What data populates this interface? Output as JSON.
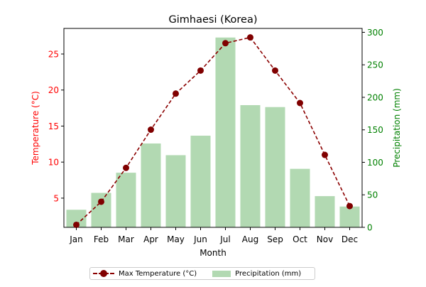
{
  "chart_data": {
    "type": "bar+line",
    "title": "Gimhaesi (Korea)",
    "xlabel": "Month",
    "categories": [
      "Jan",
      "Feb",
      "Mar",
      "Apr",
      "May",
      "Jun",
      "Jul",
      "Aug",
      "Sep",
      "Oct",
      "Nov",
      "Dec"
    ],
    "series": [
      {
        "name": "Max Temperature (°C)",
        "type": "line",
        "axis": "left",
        "color": "#8b0000",
        "values": [
          1.3,
          4.5,
          9.2,
          14.5,
          19.5,
          22.7,
          26.5,
          27.3,
          22.7,
          18.2,
          11.0,
          3.9
        ]
      },
      {
        "name": "Precipitation (mm)",
        "type": "bar",
        "axis": "right",
        "color": "#b2d9b2",
        "values": [
          27,
          53,
          84,
          129,
          111,
          141,
          292,
          188,
          185,
          90,
          48,
          32
        ]
      }
    ],
    "y_left": {
      "label": "Temperature (°C)",
      "color": "#ff0000",
      "ticks": [
        5,
        10,
        15,
        20,
        25
      ],
      "ylim": [
        0.95,
        28.55
      ]
    },
    "y_right": {
      "label": "Precipitation (mm)",
      "color": "#008000",
      "ticks": [
        0,
        50,
        100,
        150,
        200,
        250,
        300
      ],
      "ylim": [
        0,
        306
      ]
    },
    "legend": {
      "position": "bottom-center",
      "entries": [
        "Max Temperature (°C)",
        "Precipitation (mm)"
      ]
    },
    "grid": false
  }
}
